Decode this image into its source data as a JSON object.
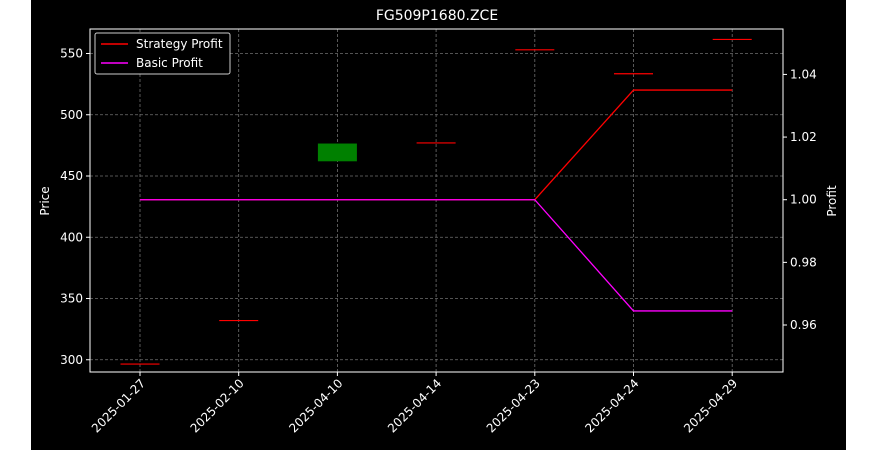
{
  "chart_data": {
    "type": "candlestick+line",
    "title": "FG509P1680.ZCE",
    "xlabel": "",
    "ylabel_left": "Price",
    "ylabel_right": "Profit",
    "categories": [
      "2025-01-27",
      "2025-02-10",
      "2025-04-10",
      "2025-04-14",
      "2025-04-23",
      "2025-04-24",
      "2025-04-29"
    ],
    "ylim_left": [
      290,
      570
    ],
    "ylim_right": [
      0.945,
      1.0545
    ],
    "yticks_left": [
      300,
      350,
      400,
      450,
      500,
      550
    ],
    "yticks_right": [
      "0.96",
      "0.98",
      "1.00",
      "1.02",
      "1.04"
    ],
    "grid": true,
    "legend_position": "upper-left",
    "candles": [
      {
        "x": "2025-01-27",
        "open": 296.5,
        "close": 296.5,
        "color": "#ff0000"
      },
      {
        "x": "2025-02-10",
        "open": 332.0,
        "close": 332.0,
        "color": "#ff0000"
      },
      {
        "x": "2025-04-10",
        "open": 462.0,
        "close": 476.5,
        "color": "#008000"
      },
      {
        "x": "2025-04-14",
        "open": 477.0,
        "close": 477.0,
        "color": "#ff0000"
      },
      {
        "x": "2025-04-23",
        "open": 553.0,
        "close": 553.0,
        "color": "#ff0000"
      },
      {
        "x": "2025-04-24",
        "open": 533.5,
        "close": 533.5,
        "color": "#ff0000"
      },
      {
        "x": "2025-04-29",
        "open": 561.5,
        "close": 561.5,
        "color": "#ff0000"
      }
    ],
    "series": [
      {
        "name": "Strategy Profit",
        "color": "#ff0000",
        "values": [
          1.0,
          1.0,
          1.0,
          1.0,
          1.0,
          1.035,
          1.035
        ]
      },
      {
        "name": "Basic Profit",
        "color": "#ff00ff",
        "values": [
          1.0,
          1.0,
          1.0,
          1.0,
          1.0,
          0.9645,
          0.9645
        ]
      }
    ]
  }
}
